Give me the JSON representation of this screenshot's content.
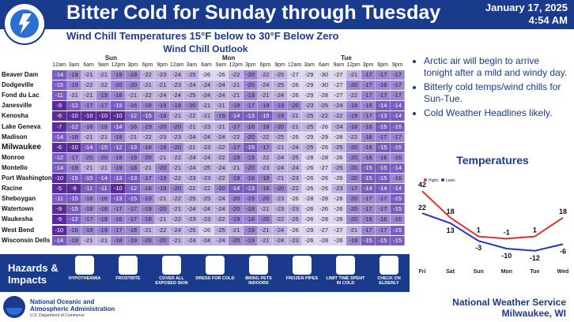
{
  "header": {
    "title": "Bitter Cold for Sunday through Tuesday",
    "date": "January 17, 2025",
    "time": "4:54 AM",
    "logo_text": "NATIONAL WEATHER SERVICE"
  },
  "subtitle": "Wind Chill Temperatures 15°F below to 30°F Below Zero",
  "outlook_title": "Wind Chill Outlook",
  "days": [
    "Sun",
    "Mon",
    "Tue"
  ],
  "hours": [
    "12am",
    "3am",
    "6am",
    "9am",
    "12pm",
    "3pm",
    "6pm",
    "9pm",
    "12am",
    "3am",
    "6am",
    "9am",
    "12pm",
    "3pm",
    "6pm",
    "9pm",
    "12am",
    "3am",
    "6am",
    "9am",
    "12pm",
    "3pm",
    "6pm",
    "9pm"
  ],
  "locations": [
    {
      "name": "Beaver Dam",
      "big": false,
      "values": [
        -14,
        -19,
        -21,
        -21,
        -19,
        -19,
        -22,
        -23,
        -24,
        -25,
        -26,
        -26,
        -22,
        -20,
        -22,
        -25,
        -27,
        -29,
        -30,
        -27,
        -21,
        -17,
        -17,
        -17
      ]
    },
    {
      "name": "Dodgeville",
      "big": false,
      "values": [
        -15,
        -19,
        -22,
        -22,
        -20,
        -20,
        -21,
        -21,
        -23,
        -24,
        -24,
        -24,
        -21,
        -20,
        -24,
        -25,
        -26,
        -29,
        -30,
        -27,
        -20,
        -17,
        -16,
        -17
      ]
    },
    {
      "name": "Fond du Lac",
      "big": false,
      "values": [
        -11,
        -21,
        -21,
        -19,
        -18,
        -21,
        -22,
        -24,
        -24,
        -25,
        -24,
        -24,
        -21,
        -19,
        -21,
        -24,
        -26,
        -29,
        -28,
        -27,
        -22,
        -17,
        -17,
        -17
      ]
    },
    {
      "name": "Janesville",
      "big": false,
      "values": [
        -9,
        -12,
        -17,
        -17,
        -15,
        -16,
        -18,
        -19,
        -19,
        -20,
        -21,
        -21,
        -18,
        -17,
        -19,
        -19,
        -20,
        -23,
        -25,
        -24,
        -18,
        -16,
        -14,
        -14
      ]
    },
    {
      "name": "Kenosha",
      "big": false,
      "values": [
        -6,
        -10,
        -10,
        -10,
        -10,
        -12,
        -15,
        -18,
        -21,
        -22,
        -21,
        -19,
        -14,
        -13,
        -15,
        -19,
        -21,
        -25,
        -22,
        -22,
        -19,
        -17,
        -13,
        -14
      ]
    },
    {
      "name": "Lake Geneva",
      "big": false,
      "values": [
        -7,
        -12,
        -16,
        -16,
        -14,
        -16,
        -19,
        -20,
        -20,
        -21,
        -23,
        -21,
        -17,
        -16,
        -18,
        -20,
        -21,
        -25,
        -26,
        -24,
        -18,
        -16,
        -15,
        -15
      ]
    },
    {
      "name": "Madison",
      "big": false,
      "values": [
        -14,
        -18,
        -21,
        -21,
        -19,
        -21,
        -22,
        -23,
        -23,
        -24,
        -24,
        -24,
        -22,
        -20,
        -22,
        -25,
        -26,
        -29,
        -29,
        -28,
        -22,
        -18,
        -17,
        -17
      ]
    },
    {
      "name": "Milwaukee",
      "big": true,
      "values": [
        -6,
        -10,
        -14,
        -15,
        -12,
        -13,
        -16,
        -18,
        -20,
        -21,
        -23,
        -22,
        -17,
        -15,
        -17,
        -21,
        -24,
        -25,
        -26,
        -25,
        -20,
        -16,
        -15,
        -15
      ]
    },
    {
      "name": "Monroe",
      "big": false,
      "values": [
        -12,
        -17,
        -20,
        -20,
        -18,
        -19,
        -20,
        -21,
        -22,
        -24,
        -24,
        -22,
        -19,
        -19,
        -22,
        -24,
        -25,
        -28,
        -28,
        -26,
        -20,
        -16,
        -16,
        -16
      ]
    },
    {
      "name": "Montello",
      "big": false,
      "values": [
        -14,
        -19,
        -21,
        -21,
        -19,
        -18,
        -21,
        -20,
        -21,
        -24,
        -25,
        -24,
        -21,
        -20,
        -23,
        -24,
        -24,
        -26,
        -27,
        -25,
        -20,
        -15,
        -15,
        -14
      ]
    },
    {
      "name": "Port Washington",
      "big": false,
      "values": [
        -10,
        -15,
        -15,
        -14,
        -13,
        -13,
        -17,
        -19,
        -22,
        -23,
        -23,
        -22,
        -19,
        -16,
        -19,
        -21,
        -23,
        -26,
        -26,
        -26,
        -20,
        -15,
        -15,
        -16
      ]
    },
    {
      "name": "Racine",
      "big": false,
      "values": [
        -5,
        -9,
        -11,
        -11,
        -10,
        -12,
        -16,
        -19,
        -20,
        -22,
        -22,
        -20,
        -14,
        -13,
        -16,
        -20,
        -22,
        -26,
        -26,
        -23,
        -17,
        -14,
        -14,
        -14
      ]
    },
    {
      "name": "Sheboygan",
      "big": false,
      "values": [
        -11,
        -15,
        -16,
        -16,
        -13,
        -15,
        -19,
        -21,
        -22,
        -25,
        -25,
        -24,
        -20,
        -19,
        -20,
        -23,
        -26,
        -28,
        -28,
        -28,
        -20,
        -17,
        -17,
        -15
      ]
    },
    {
      "name": "Watertown",
      "big": false,
      "values": [
        -9,
        -15,
        -18,
        -18,
        -17,
        -17,
        -19,
        -20,
        -21,
        -24,
        -24,
        -24,
        -20,
        -19,
        -21,
        -23,
        -23,
        -26,
        -26,
        -26,
        -20,
        -17,
        -17,
        -15
      ]
    },
    {
      "name": "Waukesha",
      "big": false,
      "values": [
        -9,
        -12,
        -17,
        -18,
        -16,
        -17,
        -18,
        -21,
        -22,
        -23,
        -23,
        -22,
        -19,
        -18,
        -20,
        -22,
        -25,
        -26,
        -28,
        -26,
        -20,
        -16,
        -16,
        -16
      ]
    },
    {
      "name": "West Bend",
      "big": false,
      "values": [
        -10,
        -16,
        -19,
        -19,
        -17,
        -18,
        -21,
        -22,
        -24,
        -25,
        -26,
        -25,
        -21,
        -19,
        -21,
        -24,
        -26,
        -29,
        -27,
        -27,
        -21,
        -17,
        -17,
        -15
      ]
    },
    {
      "name": "Wisconsin Dells",
      "big": false,
      "values": [
        -14,
        -19,
        -21,
        -21,
        -18,
        -19,
        -20,
        -20,
        -21,
        -24,
        -24,
        -24,
        -20,
        -19,
        -21,
        -24,
        -23,
        -26,
        -28,
        -26,
        -19,
        -15,
        -15,
        -15
      ]
    }
  ],
  "bullets": [
    "Arctic air will begin to arrive tonight after a mild and windy day.",
    "Bitterly cold temps/wind chills for Sun-Tue.",
    "Cold Weather Headlines likely."
  ],
  "temperatures": {
    "title": "Temperatures",
    "legend_highs": "Highs",
    "legend_lows": "Lows",
    "days": [
      "Fri",
      "Sat",
      "Sun",
      "Mon",
      "Tue",
      "Wed"
    ],
    "highs": [
      42,
      18,
      1,
      -1,
      1,
      18
    ],
    "lows": [
      22,
      13,
      -3,
      -10,
      -12,
      -6
    ],
    "high_color": "#e03030",
    "low_color": "#2830c8"
  },
  "hazards": {
    "title_line1": "Hazards &",
    "title_line2": "Impacts",
    "items": [
      {
        "label": "HYPOTHERMIA",
        "icon": "hypothermia-icon"
      },
      {
        "label": "FROSTBITE",
        "icon": "frostbite-icon"
      },
      {
        "label": "COVER ALL EXPOSED SKIN",
        "icon": "skin-icon"
      },
      {
        "label": "DRESS FOR COLD",
        "icon": "coat-icon"
      },
      {
        "label": "BRING PETS INDOORS",
        "icon": "paw-icon"
      },
      {
        "label": "FROZEN PIPES",
        "icon": "pipe-icon"
      },
      {
        "label": "LIMIT TIME SPENT IN COLD",
        "icon": "timer-icon"
      },
      {
        "label": "CHECK ON ELDERLY",
        "icon": "elderly-icon"
      }
    ]
  },
  "footer": {
    "noaa_line1": "National Oceanic and",
    "noaa_line2": "Atmospheric Administration",
    "noaa_line3": "U.S. Department of Commerce",
    "nws_line1": "National Weather Service",
    "nws_line2": "Milwaukee, WI"
  }
}
